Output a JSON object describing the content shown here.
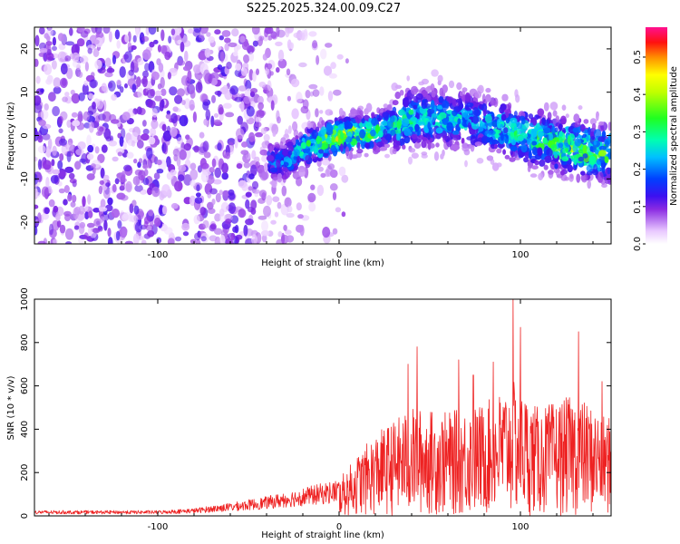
{
  "title": "S225.2025.324.00.09.C27",
  "colors": {
    "snr_line": "#ee2222",
    "axes": "#000000"
  },
  "chart_data": [
    {
      "type": "heatmap",
      "xlabel": "Height of straight line (km)",
      "ylabel": "Frequency (Hz)",
      "xlim": [
        -168,
        150
      ],
      "ylim": [
        -25,
        25
      ],
      "x_ticks": [
        -100,
        0,
        100
      ],
      "y_ticks": [
        -20,
        -10,
        0,
        10,
        20
      ],
      "colorbar": {
        "label": "Normalized spectral amplitude",
        "range": [
          0,
          0.58
        ],
        "ticks": [
          0.0,
          0.1,
          0.2,
          0.3,
          0.4,
          0.5
        ],
        "colormap": "rainbow (white-violet-blue-cyan-green-yellow-orange-red-magenta)"
      },
      "ridge_frequency_hz": [
        {
          "x": -30,
          "y": -6
        },
        {
          "x": -20,
          "y": -3
        },
        {
          "x": 0,
          "y": 0
        },
        {
          "x": 20,
          "y": 1
        },
        {
          "x": 40,
          "y": 4
        },
        {
          "x": 60,
          "y": 4
        },
        {
          "x": 80,
          "y": 3
        },
        {
          "x": 100,
          "y": 0
        },
        {
          "x": 120,
          "y": -2
        },
        {
          "x": 145,
          "y": -4
        }
      ],
      "amplitude_profile": [
        {
          "x": -168,
          "amp": 0.12
        },
        {
          "x": -50,
          "amp": 0.14
        },
        {
          "x": -30,
          "amp": 0.2
        },
        {
          "x": 0,
          "amp": 0.5
        },
        {
          "x": 20,
          "amp": 0.35
        },
        {
          "x": 40,
          "amp": 0.3
        },
        {
          "x": 80,
          "amp": 0.25
        },
        {
          "x": 130,
          "amp": 0.4
        },
        {
          "x": 150,
          "amp": 0.35
        }
      ]
    },
    {
      "type": "line",
      "xlabel": "Height of straight line (km)",
      "ylabel": "SNR (10 * v/v)",
      "xlim": [
        -168,
        150
      ],
      "ylim": [
        0,
        1000
      ],
      "x_ticks": [
        -100,
        0,
        100
      ],
      "y_ticks": [
        0,
        200,
        400,
        600,
        800,
        1000
      ],
      "series": [
        {
          "envelope": [
            {
              "x": -168,
              "y": 25
            },
            {
              "x": -100,
              "y": 25
            },
            {
              "x": -80,
              "y": 35
            },
            {
              "x": -60,
              "y": 60
            },
            {
              "x": -40,
              "y": 90
            },
            {
              "x": -20,
              "y": 130
            },
            {
              "x": 0,
              "y": 170
            },
            {
              "x": 10,
              "y": 280
            },
            {
              "x": 20,
              "y": 380
            },
            {
              "x": 40,
              "y": 500
            },
            {
              "x": 60,
              "y": 480
            },
            {
              "x": 80,
              "y": 520
            },
            {
              "x": 96,
              "y": 620
            },
            {
              "x": 110,
              "y": 500
            },
            {
              "x": 130,
              "y": 560
            },
            {
              "x": 150,
              "y": 450
            }
          ],
          "peaks": [
            {
              "x": 38,
              "y": 700
            },
            {
              "x": 43,
              "y": 780
            },
            {
              "x": 66,
              "y": 720
            },
            {
              "x": 74,
              "y": 650
            },
            {
              "x": 85,
              "y": 710
            },
            {
              "x": 96,
              "y": 1000
            },
            {
              "x": 100,
              "y": 870
            },
            {
              "x": 132,
              "y": 850
            },
            {
              "x": 145,
              "y": 620
            }
          ]
        }
      ]
    }
  ]
}
